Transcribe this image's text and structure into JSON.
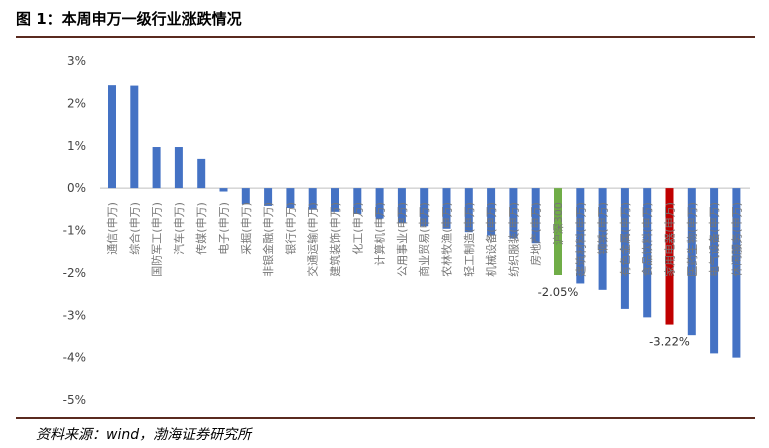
{
  "figure": {
    "title": "图 1：本周申万一级行业涨跌情况",
    "source": "资料来源：wind，渤海证券研究所"
  },
  "colors": {
    "default_bar": "#4472C4",
    "benchmark_bar": "#70AD47",
    "highlight_bar": "#C00000",
    "rule": "#5A2A1F",
    "zero_line": "#BFBFBF"
  },
  "chart_data": {
    "type": "bar",
    "yunit": "%",
    "ylim": [
      -5,
      3
    ],
    "yticks": [
      "3%",
      "2%",
      "1%",
      "0%",
      "-1%",
      "-2%",
      "-3%",
      "-4%",
      "-5%"
    ],
    "grid": false,
    "categories": [
      "通信(申万)",
      "综合(申万)",
      "国防军工(申万)",
      "汽车(申万)",
      "传媒(申万)",
      "电子(申万)",
      "采掘(申万)",
      "非银金融(申万)",
      "银行(申万)",
      "交通运输(申万)",
      "建筑装饰(申万)",
      "化工(申万)",
      "计算机(申万)",
      "公用事业(申万)",
      "商业贸易(申万)",
      "农林牧渔(申万)",
      "轻工制造(申万)",
      "机械设备(申万)",
      "纺织服装(申万)",
      "房地产(申万)",
      "沪深300",
      "建筑材料(申万)",
      "钢铁(申万)",
      "有色金属(申万)",
      "食品饮料(申万)",
      "家用电器(申万)",
      "医药生物(申万)",
      "电气设备(申万)",
      "休闲服务(申万)"
    ],
    "values": [
      2.43,
      2.42,
      0.97,
      0.97,
      0.69,
      -0.08,
      -0.38,
      -0.42,
      -0.47,
      -0.51,
      -0.56,
      -0.61,
      -0.72,
      -0.82,
      -0.9,
      -0.96,
      -1.04,
      -1.12,
      -1.19,
      -1.3,
      -2.05,
      -2.25,
      -2.4,
      -2.85,
      -3.05,
      -3.22,
      -3.47,
      -3.9,
      -4.0
    ],
    "benchmark_index": 20,
    "highlight_index": 25,
    "data_labels": [
      {
        "index": 20,
        "text": "-2.05%"
      },
      {
        "index": 25,
        "text": "-3.22%"
      }
    ]
  }
}
